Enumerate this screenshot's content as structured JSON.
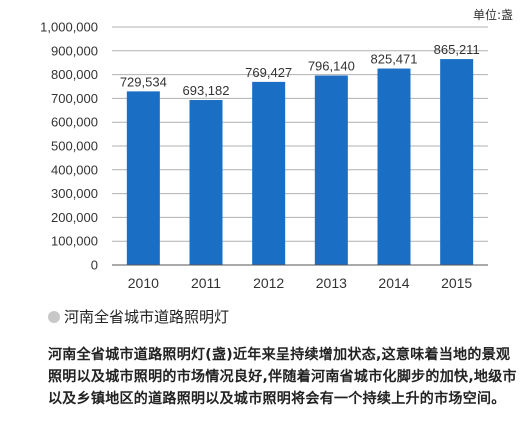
{
  "chart_data": {
    "type": "bar",
    "unit": "单位:盏",
    "categories": [
      "2010",
      "2011",
      "2012",
      "2013",
      "2014",
      "2015"
    ],
    "values": [
      729534,
      693182,
      769427,
      796140,
      825471,
      865211
    ],
    "value_labels": [
      "729,534",
      "693,182",
      "769,427",
      "796,140",
      "825,471",
      "865,211"
    ],
    "ylim": [
      0,
      1000000
    ],
    "yticks": [
      0,
      100000,
      200000,
      300000,
      400000,
      500000,
      600000,
      700000,
      800000,
      900000,
      1000000
    ],
    "ytick_labels": [
      "0",
      "100,000",
      "200,000",
      "300,000",
      "400,000",
      "500,000",
      "600,000",
      "700,000",
      "800,000",
      "900,000",
      "1,000,000"
    ],
    "grid": true,
    "bar_color": "#1a6fc4",
    "grid_color": "#b0b0b0"
  },
  "caption": "河南全省城市道路照明灯",
  "description": "河南全省城市道路照明灯(盏)近年来呈持续增加状态,这意味着当地的景观照明以及城市照明的市场情况良好,伴随着河南省城市化脚步的加快,地级市以及乡镇地区的道路照明以及城市照明将会有一个持续上升的市场空间。"
}
